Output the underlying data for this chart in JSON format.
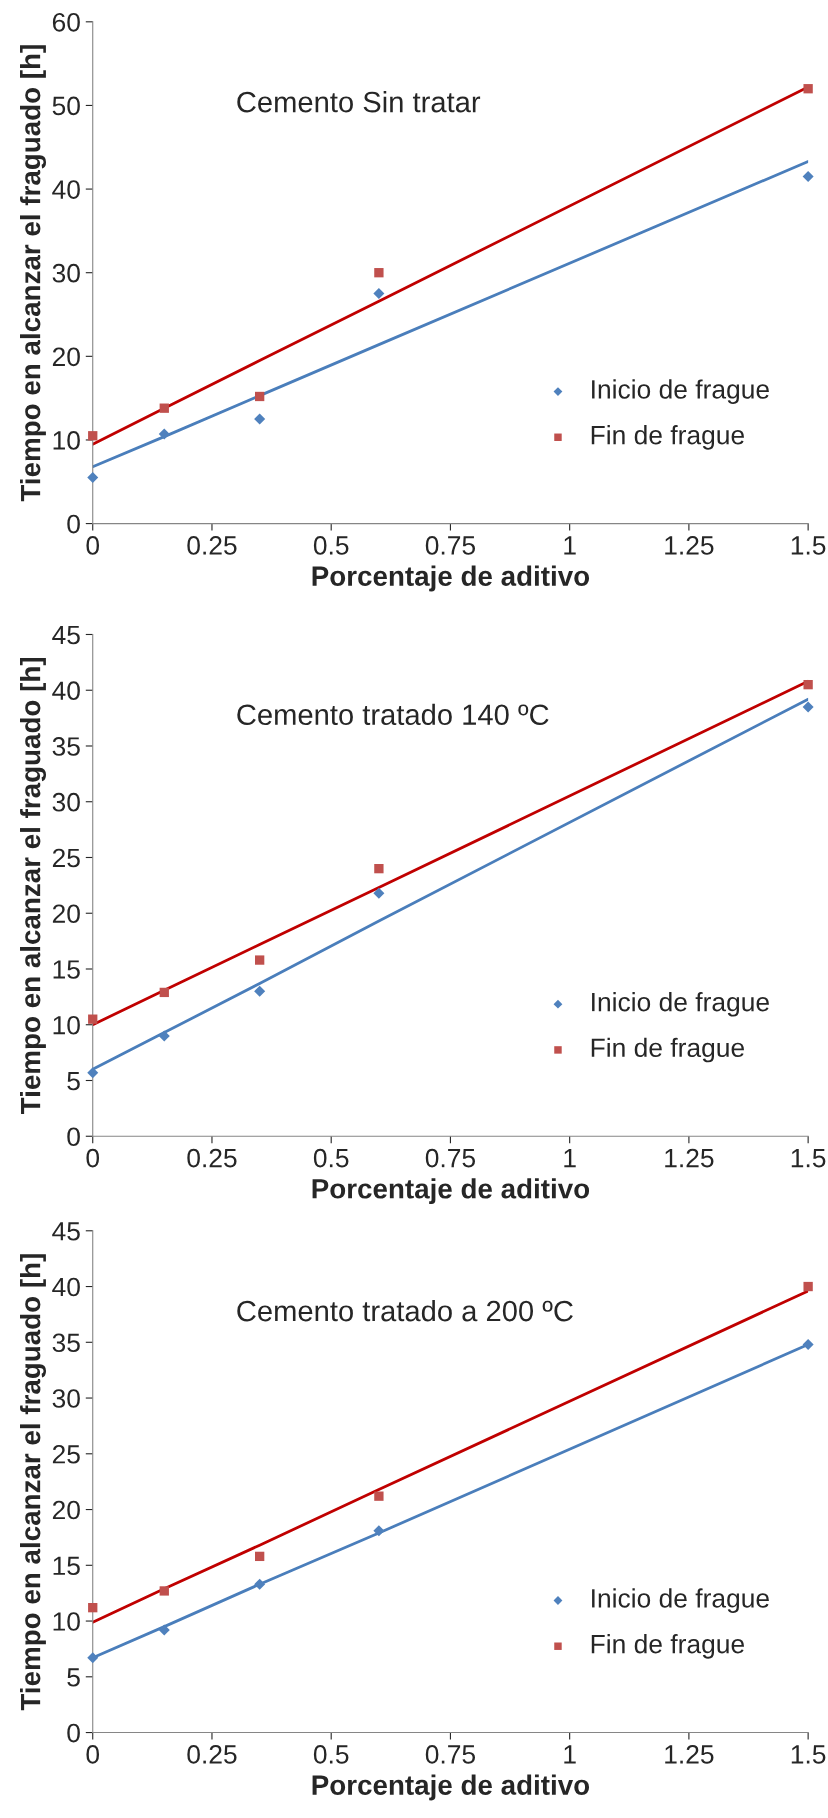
{
  "chart_data": [
    {
      "type": "scatter",
      "title": "Cemento Sin tratar",
      "xlabel": "Porcentaje de aditivo",
      "ylabel": "Tiempo en alcanzar el fraguado [h]",
      "x": [
        0,
        0.15,
        0.35,
        0.6,
        1.5
      ],
      "xlim": [
        0,
        1.5
      ],
      "xticks": [
        0,
        0.25,
        0.5,
        0.75,
        1,
        1.25,
        1.5
      ],
      "ylim": [
        0,
        60
      ],
      "yticks": [
        0,
        10,
        20,
        30,
        40,
        50,
        60
      ],
      "legend": "lower right",
      "grid": false,
      "series": [
        {
          "name": "Inicio de frague",
          "color": "#4f81bd",
          "marker": "diamond",
          "values": [
            5.5,
            10.7,
            12.5,
            27.5,
            41.5
          ]
        },
        {
          "name": "Fin de frague",
          "color": "#c0504d",
          "marker": "square",
          "values": [
            10.5,
            13.8,
            15.2,
            30,
            52
          ]
        },
        {
          "type": "line",
          "color": "#4a7ebb",
          "values": [
            6.8,
            10.4,
            15.3,
            21.4,
            43.3
          ]
        },
        {
          "type": "line",
          "color": "#c00000",
          "values": [
            9.5,
            13.8,
            19.5,
            26.6,
            52.2
          ]
        }
      ]
    },
    {
      "type": "scatter",
      "title": "Cemento tratado 140 ºC",
      "xlabel": "Porcentaje de aditivo",
      "ylabel": "Tiempo en alcanzar el fraguado [h]",
      "x": [
        0,
        0.15,
        0.35,
        0.6,
        1.5
      ],
      "xlim": [
        0,
        1.5
      ],
      "xticks": [
        0,
        0.25,
        0.5,
        0.75,
        1,
        1.25,
        1.5
      ],
      "ylim": [
        0,
        45
      ],
      "yticks": [
        0,
        5,
        10,
        15,
        20,
        25,
        30,
        35,
        40,
        45
      ],
      "legend": "lower right",
      "grid": false,
      "series": [
        {
          "name": "Inicio de frague",
          "color": "#4f81bd",
          "marker": "diamond",
          "values": [
            5.7,
            9,
            13,
            21.8,
            38.5
          ]
        },
        {
          "name": "Fin de frague",
          "color": "#c0504d",
          "marker": "square",
          "values": [
            10.5,
            12.9,
            15.8,
            24,
            40.5
          ]
        },
        {
          "type": "line",
          "color": "#4a7ebb",
          "values": [
            6,
            9.3,
            13.7,
            19.3,
            39.2
          ]
        },
        {
          "type": "line",
          "color": "#c00000",
          "values": [
            10,
            13.1,
            17.2,
            22.3,
            40.8
          ]
        }
      ]
    },
    {
      "type": "scatter",
      "title": "Cemento tratado a 200 ºC",
      "xlabel": "Porcentaje de aditivo",
      "ylabel": "Tiempo en alcanzar el fraguado [h]",
      "x": [
        0,
        0.15,
        0.35,
        0.6,
        1.5
      ],
      "xlim": [
        0,
        1.5
      ],
      "xticks": [
        0,
        0.25,
        0.5,
        0.75,
        1,
        1.25,
        1.5
      ],
      "ylim": [
        0,
        45
      ],
      "yticks": [
        0,
        5,
        10,
        15,
        20,
        25,
        30,
        35,
        40,
        45
      ],
      "legend": "lower right",
      "grid": false,
      "series": [
        {
          "name": "Inicio de frague",
          "color": "#4f81bd",
          "marker": "diamond",
          "values": [
            6.7,
            9.2,
            13.3,
            18.1,
            34.8
          ]
        },
        {
          "name": "Fin de frague",
          "color": "#c0504d",
          "marker": "square",
          "values": [
            11.2,
            12.7,
            15.8,
            21.2,
            40
          ]
        },
        {
          "type": "line",
          "color": "#4a7ebb",
          "values": [
            6.7,
            9.5,
            13.3,
            17.9,
            34.8
          ]
        },
        {
          "type": "line",
          "color": "#c00000",
          "values": [
            9.9,
            12.9,
            16.8,
            21.8,
            39.6
          ]
        }
      ]
    }
  ]
}
